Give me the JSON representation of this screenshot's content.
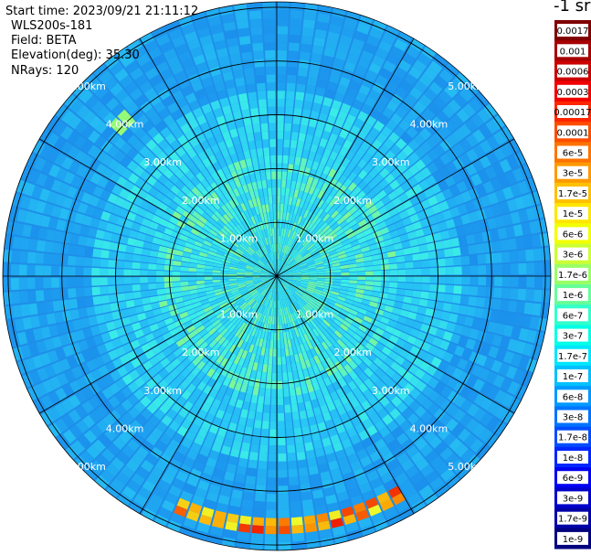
{
  "info": {
    "start_time": "Start time: 2023/09/21 21:11:12",
    "instrument": "WLS200s-181",
    "field": "Field: BETA",
    "elevation": "Elevation(deg): 35.30",
    "nrays": "NRays: 120"
  },
  "colorbar": {
    "unit": "-1 sr",
    "labels": [
      "0.0017",
      "0.001",
      "0.0006",
      "0.0003",
      "0.00017",
      "0.0001",
      "6e-5",
      "3e-5",
      "1.7e-5",
      "1e-5",
      "6e-6",
      "3e-6",
      "1.7e-6",
      "1e-6",
      "6e-7",
      "3e-7",
      "1.7e-7",
      "1e-7",
      "6e-8",
      "3e-8",
      "1.7e-8",
      "1e-8",
      "6e-9",
      "3e-9",
      "1.7e-9",
      "1e-9"
    ],
    "colors": [
      "#7f0000",
      "#a60000",
      "#cc0000",
      "#f20000",
      "#ff2600",
      "#ff4d00",
      "#ff7300",
      "#ff9900",
      "#ffc000",
      "#ffe600",
      "#f2ff00",
      "#ccff33",
      "#99ff66",
      "#66ff99",
      "#33ffcc",
      "#00ffe6",
      "#00e6ff",
      "#00c0ff",
      "#0099ff",
      "#0073ff",
      "#004dff",
      "#0026ff",
      "#0000f2",
      "#0000cc",
      "#0000a6",
      "#00007f"
    ]
  },
  "chart_data": {
    "type": "heatmap",
    "projection": "polar PPI",
    "field": "BETA",
    "nrays": 120,
    "elevation_deg": 35.3,
    "range_rings_km": [
      1,
      2,
      3,
      4,
      5
    ],
    "ring_labels": [
      "1.00km",
      "2.00km",
      "3.00km",
      "4.00km",
      "5.00km"
    ],
    "azimuth_spokes_deg": [
      0,
      30,
      60,
      90,
      120,
      150,
      180,
      210,
      240,
      270,
      300,
      330
    ],
    "background_level": "1e-8",
    "near_range_level": "1e-7",
    "features": [
      {
        "description": "high backscatter arc",
        "range_km": 4.6,
        "azimuth_deg": [
          150,
          205
        ],
        "peak": "3e-5"
      },
      {
        "description": "small patch",
        "range_km": 4.0,
        "azimuth_deg": [
          312,
          318
        ],
        "peak": "1e-6"
      }
    ]
  }
}
